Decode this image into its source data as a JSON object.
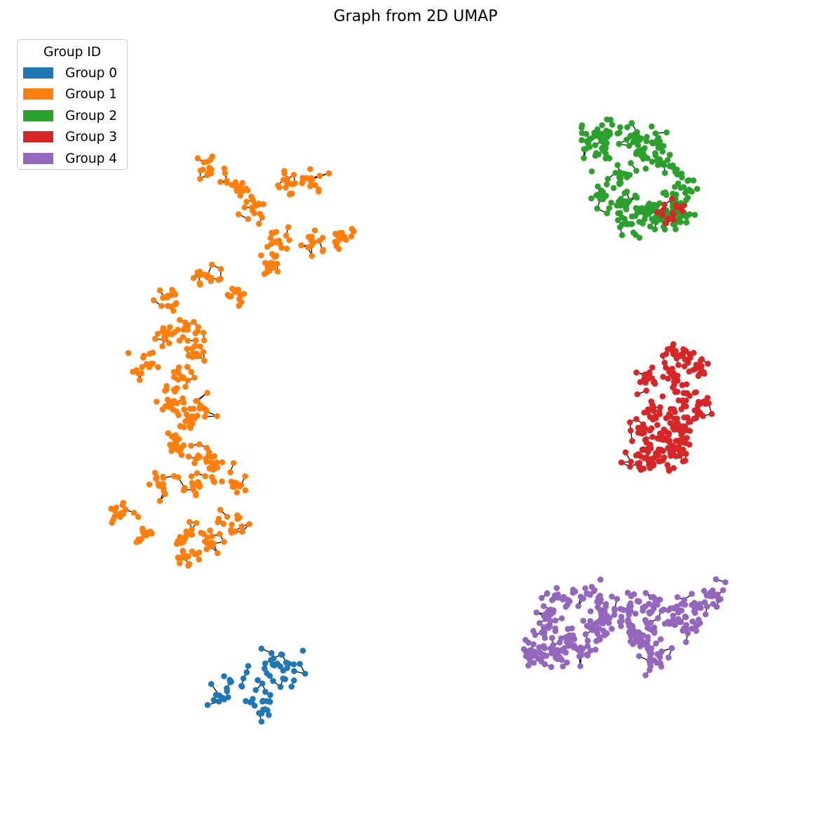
{
  "chart_data": {
    "type": "scatter",
    "title": "Graph from 2D UMAP",
    "xlabel": "",
    "ylabel": "",
    "axes_visible": false,
    "grid": false,
    "xlim": [
      0,
      100
    ],
    "ylim": [
      0,
      100
    ],
    "legend": {
      "title": "Group ID",
      "placement": "top-left",
      "entries": [
        {
          "label": "Group 0",
          "color": "#1f77b4"
        },
        {
          "label": "Group 1",
          "color": "#ff7f0e"
        },
        {
          "label": "Group 2",
          "color": "#2ca02c"
        },
        {
          "label": "Group 3",
          "color": "#d62728"
        },
        {
          "label": "Group 4",
          "color": "#9467bd"
        }
      ]
    },
    "edge_color": "#000000",
    "clusters": [
      {
        "group": "Group 0",
        "color": "#1f77b4",
        "center": [
          28.5,
          13.0
        ],
        "spread": [
          4.5,
          3.5
        ],
        "count": 80,
        "points": [
          [
            23.3,
            12.2
          ],
          [
            24.4,
            11.6
          ],
          [
            25.2,
            13.9
          ],
          [
            26.7,
            13.4
          ],
          [
            27.9,
            11.2
          ],
          [
            29.6,
            11.4
          ],
          [
            29.4,
            9.7
          ],
          [
            30.1,
            15.1
          ],
          [
            31.5,
            16.4
          ],
          [
            31.0,
            17.1
          ],
          [
            32.8,
            15.8
          ],
          [
            33.4,
            13.3
          ],
          [
            33.7,
            16.3
          ],
          [
            29.9,
            12.6
          ]
        ]
      },
      {
        "group": "Group 1",
        "color": "#ff7f0e",
        "center": [
          22.0,
          56.0
        ],
        "spread": [
          11.0,
          25.0
        ],
        "count": 520,
        "points": [
          [
            22.4,
            83.1
          ],
          [
            26.4,
            80.2
          ],
          [
            28.2,
            77.3
          ],
          [
            36.0,
            81.3
          ],
          [
            33.3,
            80.9
          ],
          [
            40.5,
            73.8
          ],
          [
            36.3,
            73.1
          ],
          [
            31.7,
            73.3
          ],
          [
            30.6,
            70.3
          ],
          [
            26.3,
            66.3
          ],
          [
            22.1,
            68.4
          ],
          [
            16.2,
            65.6
          ],
          [
            19.5,
            61.3
          ],
          [
            16.4,
            60.4
          ],
          [
            14.0,
            56.7
          ],
          [
            18.2,
            54.6
          ],
          [
            20.7,
            58.1
          ],
          [
            16.8,
            51.9
          ],
          [
            19.2,
            49.0
          ],
          [
            21.1,
            50.7
          ],
          [
            18.0,
            45.9
          ],
          [
            20.9,
            44.4
          ],
          [
            23.0,
            43.2
          ],
          [
            15.6,
            40.6
          ],
          [
            20.2,
            40.1
          ],
          [
            26.0,
            40.7
          ],
          [
            10.0,
            36.4
          ],
          [
            13.7,
            34.1
          ],
          [
            19.3,
            33.6
          ],
          [
            22.1,
            32.6
          ],
          [
            25.4,
            35.1
          ],
          [
            19.5,
            30.8
          ]
        ]
      },
      {
        "group": "Group 2",
        "color": "#2ca02c",
        "center": [
          80.5,
          82.0
        ],
        "spread": [
          7.0,
          6.0
        ],
        "count": 300,
        "points": [
          [
            73.6,
            87.1
          ],
          [
            76.0,
            87.9
          ],
          [
            79.6,
            87.2
          ],
          [
            82.3,
            86.7
          ],
          [
            74.5,
            84.9
          ],
          [
            77.3,
            81.8
          ],
          [
            80.5,
            84.3
          ],
          [
            82.9,
            83.6
          ],
          [
            85.9,
            80.5
          ],
          [
            74.7,
            79.3
          ],
          [
            78.2,
            78.0
          ],
          [
            80.8,
            77.3
          ],
          [
            83.5,
            77.0
          ],
          [
            84.8,
            78.5
          ],
          [
            78.3,
            75.5
          ],
          [
            82.2,
            76.5
          ],
          [
            85.5,
            76.5
          ]
        ]
      },
      {
        "group": "Group 3",
        "color": "#d62728",
        "center": [
          85.0,
          50.0
        ],
        "spread": [
          5.5,
          7.5
        ],
        "count": 300,
        "points": [
          [
            84.1,
            55.9
          ],
          [
            86.1,
            57.3
          ],
          [
            88.2,
            56.1
          ],
          [
            81.1,
            54.7
          ],
          [
            85.9,
            52.8
          ],
          [
            87.9,
            51.6
          ],
          [
            81.6,
            50.7
          ],
          [
            84.1,
            49.8
          ],
          [
            86.6,
            48.9
          ],
          [
            80.2,
            47.9
          ],
          [
            82.9,
            47.2
          ],
          [
            85.6,
            47.2
          ],
          [
            81.1,
            45.3
          ],
          [
            84.1,
            45.2
          ],
          [
            80.0,
            43.4
          ],
          [
            82.6,
            43.6
          ],
          [
            85.4,
            44.9
          ],
          [
            84.5,
            58.2
          ],
          [
            84.5,
            77.0
          ]
        ]
      },
      {
        "group": "Group 4",
        "color": "#9467bd",
        "center": [
          76.0,
          20.5
        ],
        "spread": [
          12.0,
          3.5
        ],
        "count": 380,
        "points": [
          [
            67.8,
            23.5
          ],
          [
            70.3,
            25.0
          ],
          [
            73.1,
            25.8
          ],
          [
            75.5,
            24.4
          ],
          [
            78.8,
            24.5
          ],
          [
            81.8,
            24.2
          ],
          [
            84.7,
            23.8
          ],
          [
            88.0,
            24.1
          ],
          [
            90.3,
            25.5
          ],
          [
            65.8,
            19.0
          ],
          [
            67.8,
            21.2
          ],
          [
            69.2,
            18.1
          ],
          [
            71.0,
            20.2
          ],
          [
            73.7,
            20.9
          ],
          [
            75.1,
            21.8
          ],
          [
            78.5,
            21.9
          ],
          [
            81.3,
            21.1
          ],
          [
            84.9,
            22.0
          ],
          [
            87.0,
            21.1
          ],
          [
            66.1,
            17.4
          ],
          [
            69.3,
            17.3
          ],
          [
            72.2,
            18.1
          ],
          [
            79.4,
            20.0
          ],
          [
            81.1,
            18.4
          ],
          [
            82.3,
            16.5
          ]
        ]
      }
    ]
  }
}
